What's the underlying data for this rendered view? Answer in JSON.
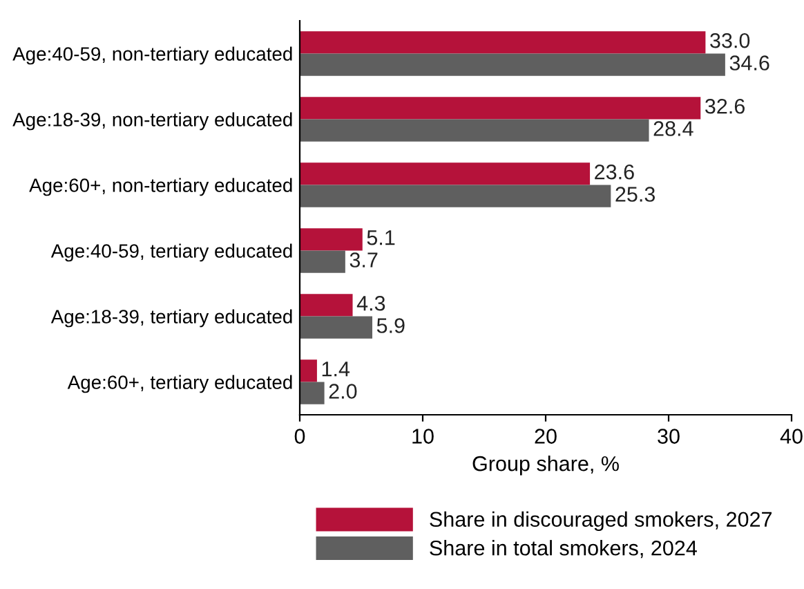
{
  "chart_data": {
    "type": "bar",
    "orientation": "horizontal",
    "xlabel": "Group share, %",
    "categories": [
      "Age:40-59, non-tertiary educated",
      "Age:18-39, non-tertiary educated",
      "Age:60+, non-tertiary educated",
      "Age:40-59, tertiary educated",
      "Age:18-39, tertiary educated",
      "Age:60+, tertiary educated"
    ],
    "series": [
      {
        "name": "Share in discouraged smokers, 2027",
        "color": "#b5123a",
        "values": [
          33.0,
          32.6,
          23.6,
          5.1,
          4.3,
          1.4
        ],
        "value_labels": [
          "33.0",
          "32.6",
          "23.6",
          "5.1",
          "4.3",
          "1.4"
        ]
      },
      {
        "name": "Share in total smokers, 2024",
        "color": "#5f5f5f",
        "values": [
          34.6,
          28.4,
          25.3,
          3.7,
          5.9,
          2.0
        ],
        "value_labels": [
          "34.6",
          "28.4",
          "25.3",
          "3.7",
          "5.9",
          "2.0"
        ]
      }
    ],
    "xlim": [
      0,
      40
    ],
    "xticks": [
      0,
      10,
      20,
      30,
      40
    ],
    "grid": false,
    "legend": "bottom"
  }
}
